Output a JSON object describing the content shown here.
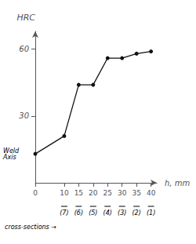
{
  "chart_data": {
    "type": "line",
    "x": [
      0,
      10,
      15,
      20,
      25,
      30,
      35,
      40
    ],
    "values": [
      13,
      21,
      44,
      44,
      56,
      56,
      58,
      59
    ],
    "color": "#111111",
    "marker": "circle",
    "xlim": [
      0,
      42
    ],
    "ylim": [
      0,
      68
    ],
    "xticks": [
      0,
      10,
      15,
      20,
      25,
      30,
      35,
      40
    ],
    "yticks": [
      30,
      60
    ],
    "xlabel": "h, mm",
    "ylabel": "HRC",
    "grid": false,
    "annotations": [
      {
        "text": "Weld\nAxis",
        "y": 13
      },
      {
        "text": "cross-sections →"
      },
      {
        "text": "(7)",
        "x": 10
      },
      {
        "text": "(6)",
        "x": 15
      },
      {
        "text": "(5)",
        "x": 20
      },
      {
        "text": "(4)",
        "x": 25
      },
      {
        "text": "(3)",
        "x": 30
      },
      {
        "text": "(2)",
        "x": 35
      },
      {
        "text": "(1)",
        "x": 40
      }
    ]
  }
}
